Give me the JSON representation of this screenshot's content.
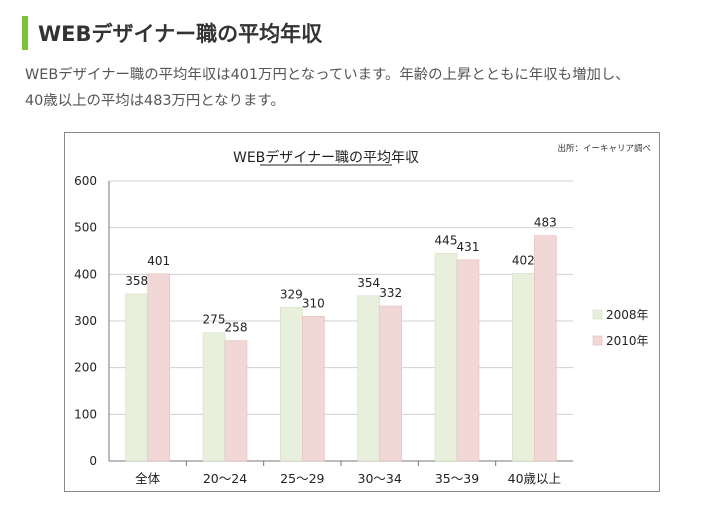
{
  "heading": "WEBデザイナー職の平均年収",
  "intro": {
    "line1": "WEBデザイナー職の平均年収は401万円となっています。年齢の上昇とともに年収も増加し、",
    "line2": "40歳以上の平均は483万円となります。"
  },
  "colors": {
    "accent": "#7cc03b",
    "series_2008": "#e8efdc",
    "series_2010": "#f2d7d7",
    "grid": "#d0d0d0"
  },
  "chart_data": {
    "type": "bar",
    "title": "WEBデザイナー職の平均年収",
    "source": "出所：イーキャリア調べ",
    "categories": [
      "全体",
      "20〜24",
      "25〜29",
      "30〜34",
      "35〜39",
      "40歳以上"
    ],
    "series": [
      {
        "name": "2008年",
        "values": [
          358,
          275,
          329,
          354,
          445,
          402
        ]
      },
      {
        "name": "2010年",
        "values": [
          401,
          258,
          310,
          332,
          431,
          483
        ]
      }
    ],
    "yticks": [
      "0",
      "100",
      "200",
      "300",
      "400",
      "500",
      "600"
    ],
    "ylim": [
      0,
      600
    ],
    "grid": true,
    "legend": "right"
  }
}
